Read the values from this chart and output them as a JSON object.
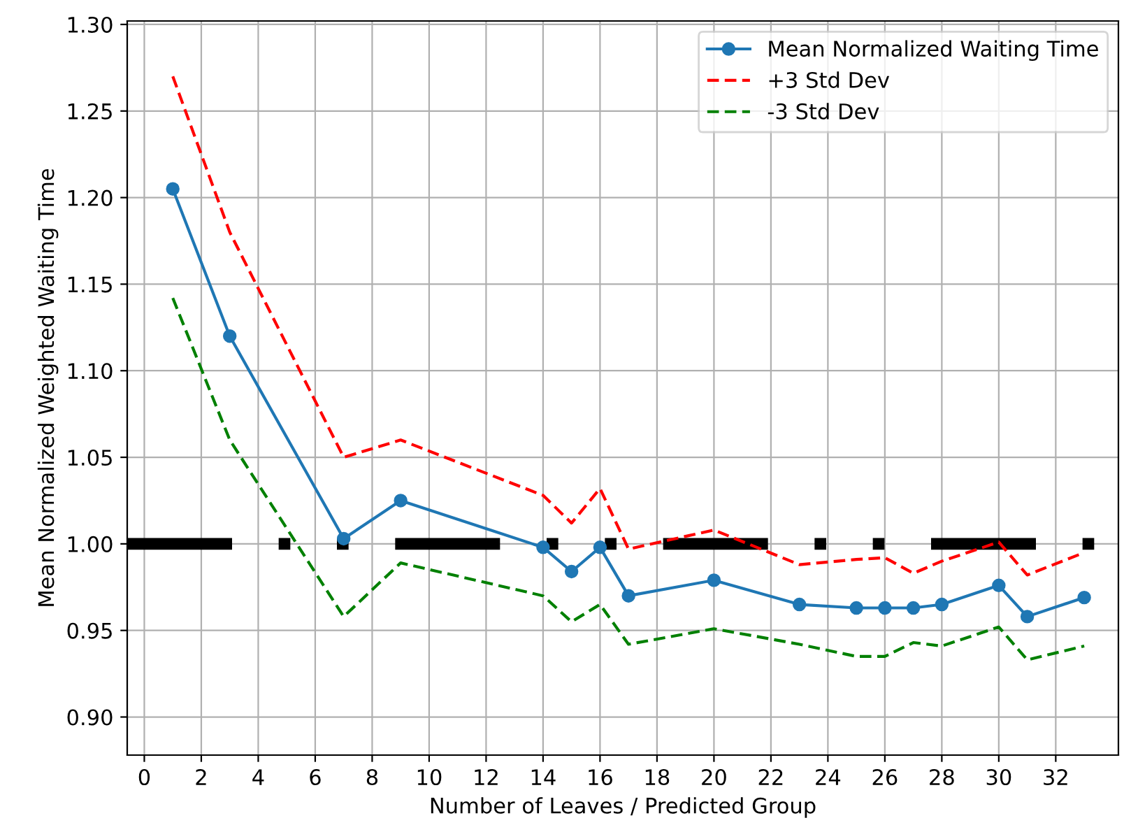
{
  "chart_data": {
    "type": "line",
    "xlabel": "Number of Leaves / Predicted Group",
    "ylabel": "Mean Normalized Weighted Waiting Time",
    "x": [
      1,
      3,
      7,
      9,
      14,
      15,
      16,
      17,
      20,
      23,
      25,
      26,
      27,
      28,
      30,
      31,
      33
    ],
    "series": [
      {
        "name": "Mean Normalized Waiting Time",
        "color": "#1f77b4",
        "marker": "circle",
        "line_style": "solid",
        "values": [
          1.205,
          1.12,
          1.003,
          1.025,
          0.998,
          0.984,
          0.998,
          0.97,
          0.979,
          0.965,
          0.963,
          0.963,
          0.963,
          0.965,
          0.976,
          0.958,
          0.969
        ]
      },
      {
        "name": "+3 Std Dev",
        "color": "#ff0000",
        "marker": "none",
        "line_style": "dashed",
        "values": [
          1.27,
          1.18,
          1.05,
          1.06,
          1.028,
          1.012,
          1.032,
          0.997,
          1.008,
          0.988,
          0.991,
          0.992,
          0.983,
          0.99,
          1.001,
          0.982,
          0.995
        ]
      },
      {
        "name": "-3 Std Dev",
        "color": "#008000",
        "marker": "none",
        "line_style": "dashed",
        "values": [
          1.142,
          1.06,
          0.958,
          0.989,
          0.97,
          0.955,
          0.965,
          0.942,
          0.951,
          0.942,
          0.935,
          0.935,
          0.943,
          0.941,
          0.952,
          0.933,
          0.941
        ]
      }
    ],
    "ref_lines": [
      {
        "axis": "y",
        "value": 1.0,
        "color": "#000000",
        "line_style": "dashdot"
      }
    ],
    "xlim": [
      -0.6,
      34.2
    ],
    "ylim": [
      0.878,
      1.302
    ],
    "xticks": [
      0,
      2,
      4,
      6,
      8,
      10,
      12,
      14,
      16,
      18,
      20,
      22,
      24,
      26,
      28,
      30,
      32
    ],
    "yticks": [
      {
        "value": 0.9,
        "label": "0.90"
      },
      {
        "value": 0.95,
        "label": "0.95"
      },
      {
        "value": 1.0,
        "label": "1.00"
      },
      {
        "value": 1.05,
        "label": "1.05"
      },
      {
        "value": 1.1,
        "label": "1.10"
      },
      {
        "value": 1.15,
        "label": "1.15"
      },
      {
        "value": 1.2,
        "label": "1.20"
      },
      {
        "value": 1.25,
        "label": "1.25"
      },
      {
        "value": 1.3,
        "label": "1.30"
      }
    ],
    "grid": true,
    "legend": "top right"
  }
}
